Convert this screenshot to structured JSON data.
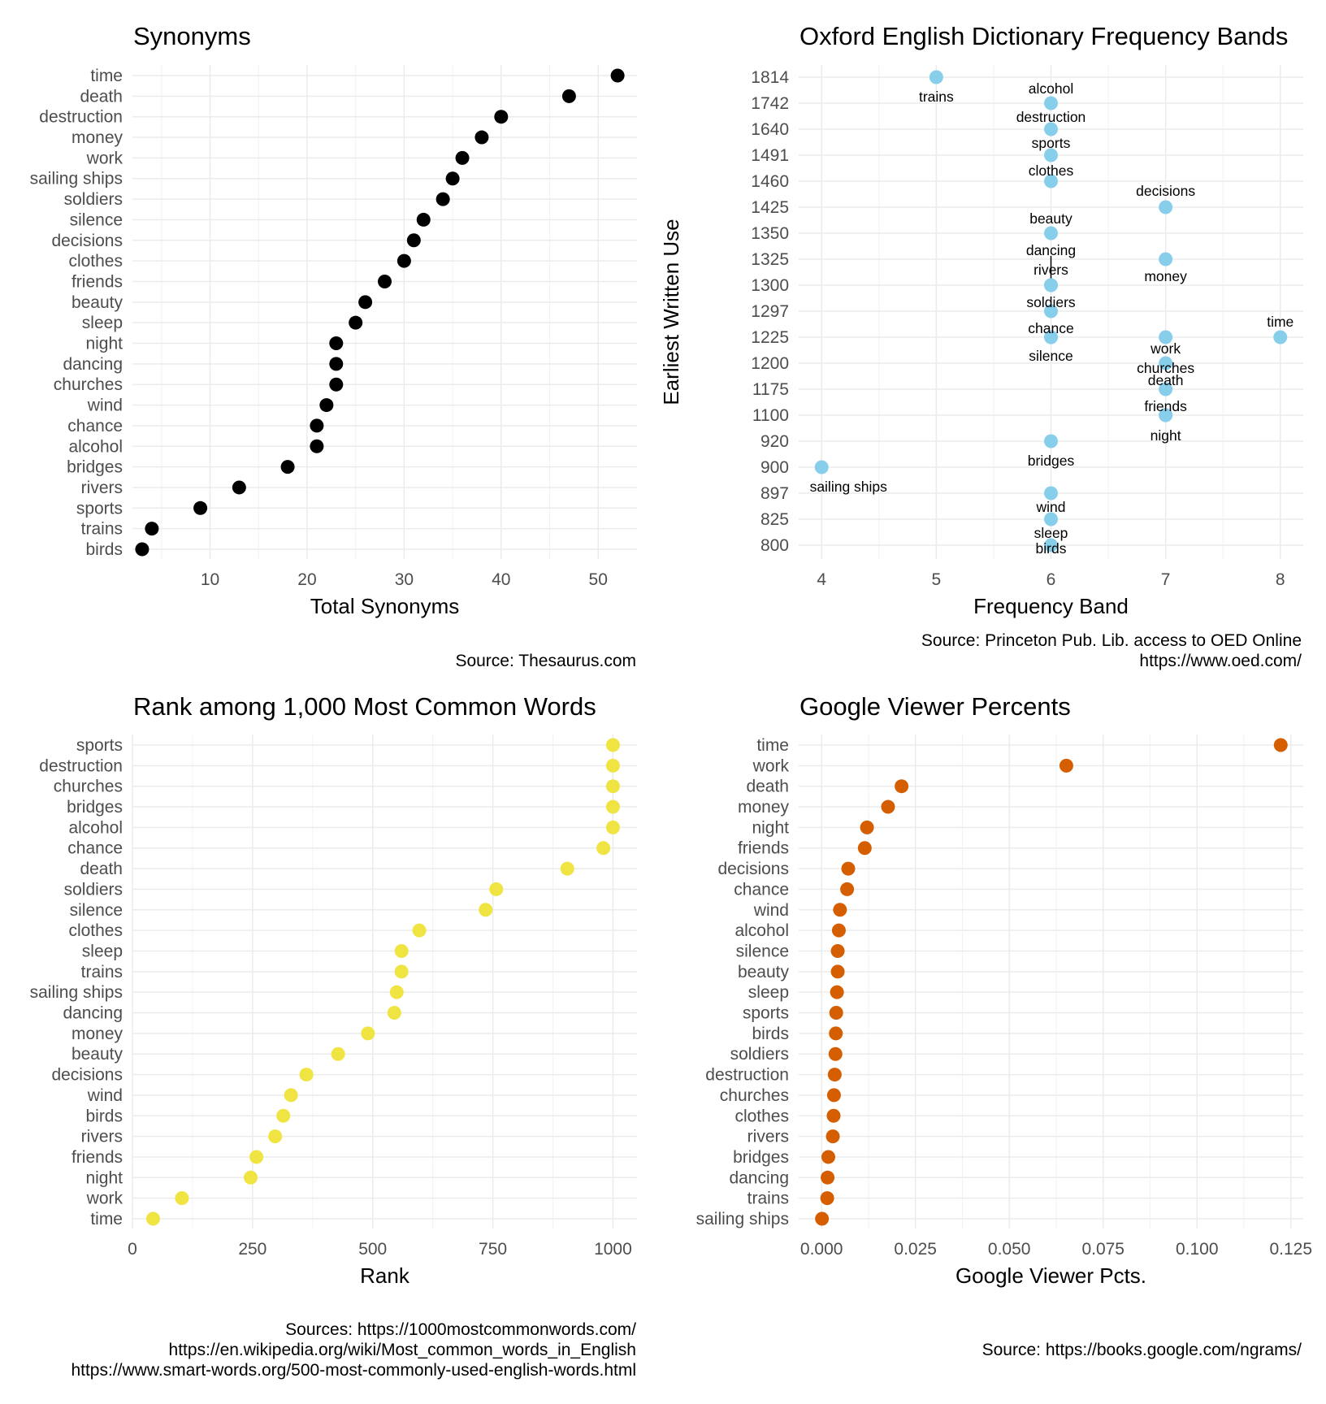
{
  "chart_data": [
    {
      "id": "synonyms",
      "type": "scatter",
      "title": "Synonyms",
      "xlabel": "Total Synonyms",
      "ylabel": "",
      "caption": [
        "Source: Thesaurus.com"
      ],
      "xlim": [
        2,
        54
      ],
      "xticks": [
        10,
        20,
        30,
        40,
        50
      ],
      "xtick_labels": [
        "10",
        "20",
        "30",
        "40",
        "50"
      ],
      "grid": true,
      "color": "#000000",
      "categories": [
        "time",
        "death",
        "destruction",
        "money",
        "work",
        "sailing ships",
        "soldiers",
        "silence",
        "decisions",
        "clothes",
        "friends",
        "beauty",
        "sleep",
        "night",
        "dancing",
        "churches",
        "wind",
        "chance",
        "alcohol",
        "bridges",
        "rivers",
        "sports",
        "trains",
        "birds"
      ],
      "values": [
        52,
        47,
        40,
        38,
        36,
        35,
        34,
        32,
        31,
        30,
        28,
        26,
        25,
        23,
        23,
        23,
        22,
        21,
        21,
        18,
        13,
        9,
        4,
        3
      ]
    },
    {
      "id": "oed",
      "type": "scatter",
      "title": "Oxford English Dictionary Frequency Bands",
      "xlabel": "Frequency Band",
      "ylabel": "Earliest Written Use",
      "caption": [
        "Source: Princeton Pub. Lib. access to OED Online",
        "https://www.oed.com/"
      ],
      "xlim": [
        3.8,
        8.2
      ],
      "xticks": [
        4,
        5,
        6,
        7,
        8
      ],
      "xtick_labels": [
        "4",
        "5",
        "6",
        "7",
        "8"
      ],
      "y_levels": [
        "1814",
        "1742",
        "1640",
        "1491",
        "1460",
        "1425",
        "1350",
        "1325",
        "1300",
        "1297",
        "1225",
        "1200",
        "1175",
        "1100",
        "920",
        "900",
        "897",
        "825",
        "800"
      ],
      "grid": true,
      "color": "#87ceeb",
      "points": [
        {
          "label": "trains",
          "x": 5,
          "y": "1814"
        },
        {
          "label": "alcohol",
          "x": 6,
          "y": "1742"
        },
        {
          "label": "destruction",
          "x": 6,
          "y": "1640"
        },
        {
          "label": "sports",
          "x": 6,
          "y": "1491"
        },
        {
          "label": "clothes",
          "x": 6,
          "y": "1460"
        },
        {
          "label": "decisions",
          "x": 7,
          "y": "1425"
        },
        {
          "label": "beauty",
          "x": 6,
          "y": "1350"
        },
        {
          "label": "money",
          "x": 7,
          "y": "1325"
        },
        {
          "label": "dancing",
          "x": 6,
          "y": "1300"
        },
        {
          "label": "rivers",
          "x": 6,
          "y": "1300"
        },
        {
          "label": "soldiers",
          "x": 6,
          "y": "1297"
        },
        {
          "label": "time",
          "x": 8,
          "y": "1225"
        },
        {
          "label": "chance",
          "x": 6,
          "y": "1225"
        },
        {
          "label": "silence",
          "x": 6,
          "y": "1225"
        },
        {
          "label": "work",
          "x": 7,
          "y": "1225"
        },
        {
          "label": "churches",
          "x": 7,
          "y": "1200"
        },
        {
          "label": "death",
          "x": 7,
          "y": "1175"
        },
        {
          "label": "friends",
          "x": 7,
          "y": "1100"
        },
        {
          "label": "night",
          "x": 7,
          "y": "1100"
        },
        {
          "label": "bridges",
          "x": 6,
          "y": "920"
        },
        {
          "label": "sailing ships",
          "x": 4,
          "y": "900"
        },
        {
          "label": "wind",
          "x": 6,
          "y": "897"
        },
        {
          "label": "sleep",
          "x": 6,
          "y": "825"
        },
        {
          "label": "birds",
          "x": 6,
          "y": "800"
        }
      ]
    },
    {
      "id": "rank",
      "type": "scatter",
      "title": "Rank among 1,000 Most Common Words",
      "xlabel": "Rank",
      "ylabel": "",
      "caption": [
        "Sources: https://1000mostcommonwords.com/",
        "https://en.wikipedia.org/wiki/Most_common_words_in_English",
        "https://www.smart-words.org/500-most-commonly-used-english-words.html"
      ],
      "xlim": [
        0,
        1050
      ],
      "xticks": [
        0,
        250,
        500,
        750,
        1000
      ],
      "xtick_labels": [
        "0",
        "250",
        "500",
        "750",
        "1000"
      ],
      "grid": true,
      "color": "#f0e442",
      "categories": [
        "sports",
        "destruction",
        "churches",
        "bridges",
        "alcohol",
        "chance",
        "death",
        "soldiers",
        "silence",
        "clothes",
        "sleep",
        "trains",
        "sailing ships",
        "dancing",
        "money",
        "beauty",
        "decisions",
        "wind",
        "birds",
        "rivers",
        "friends",
        "night",
        "work",
        "time"
      ],
      "values": [
        1000,
        1000,
        1000,
        1000,
        1000,
        980,
        905,
        757,
        735,
        597,
        560,
        560,
        550,
        545,
        490,
        428,
        362,
        330,
        314,
        297,
        258,
        246,
        103,
        43
      ]
    },
    {
      "id": "google",
      "type": "scatter",
      "title": "Google Viewer Percents",
      "xlabel": "Google Viewer Pcts.",
      "ylabel": "",
      "caption": [
        "Source: https://books.google.com/ngrams/"
      ],
      "xlim": [
        -0.0061,
        0.1283
      ],
      "xticks": [
        0,
        0.025,
        0.05,
        0.075,
        0.1,
        0.125
      ],
      "xtick_labels": [
        "0.000",
        "0.025",
        "0.050",
        "0.075",
        "0.100",
        "0.125"
      ],
      "grid": true,
      "color": "#d55e00",
      "categories": [
        "time",
        "work",
        "death",
        "money",
        "night",
        "friends",
        "decisions",
        "chance",
        "wind",
        "alcohol",
        "silence",
        "beauty",
        "sleep",
        "sports",
        "birds",
        "soldiers",
        "destruction",
        "churches",
        "clothes",
        "rivers",
        "bridges",
        "dancing",
        "trains",
        "sailing ships"
      ],
      "values": [
        0.1223,
        0.0652,
        0.0213,
        0.0177,
        0.0121,
        0.0115,
        0.0071,
        0.0068,
        0.0049,
        0.0046,
        0.0043,
        0.0043,
        0.0041,
        0.0039,
        0.0038,
        0.0037,
        0.0035,
        0.0033,
        0.0032,
        0.003,
        0.0018,
        0.0016,
        0.0015,
        0.0001
      ]
    }
  ]
}
